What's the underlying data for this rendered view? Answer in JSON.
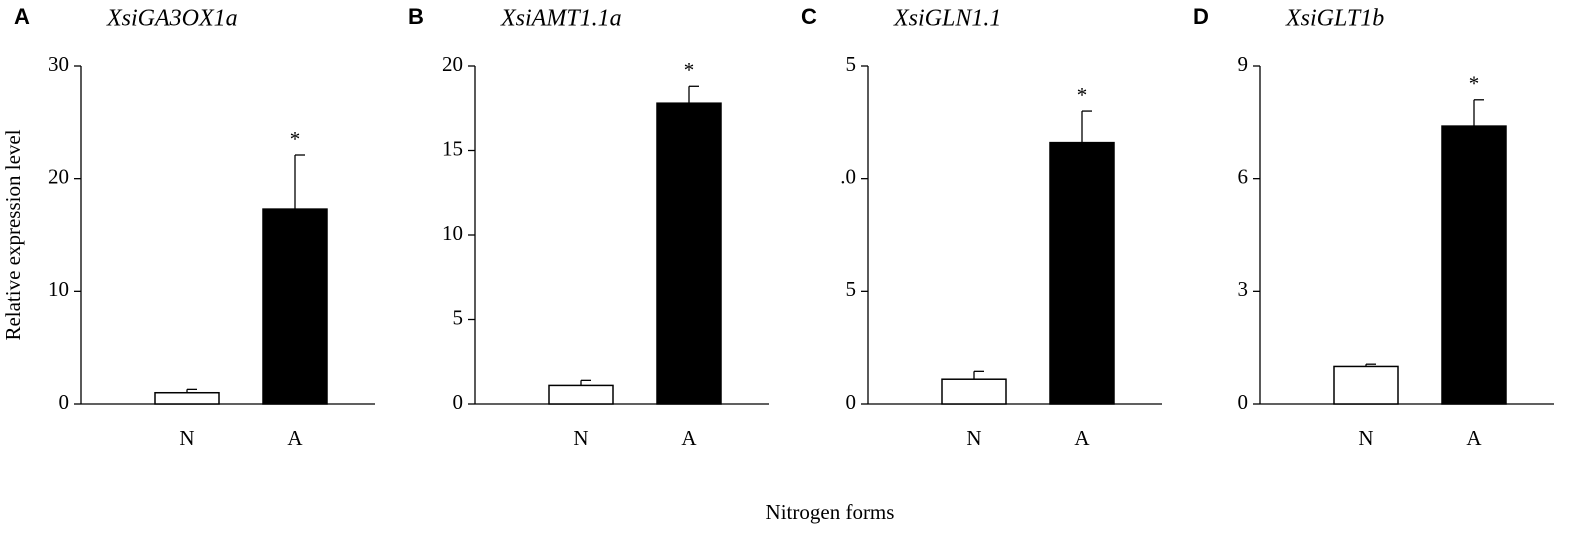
{
  "chart_data": [
    {
      "type": "bar",
      "panel": "A",
      "title": "XsiGA3OX1a",
      "ylabel": "Relative expression level",
      "categories": [
        "N",
        "A"
      ],
      "values": [
        1.0,
        17.3
      ],
      "errors": [
        0.3,
        4.8
      ],
      "colors": [
        "#ffffff",
        "#000000"
      ],
      "significance": [
        null,
        "*"
      ],
      "ylim": [
        0,
        30
      ],
      "yticks": [
        0,
        10,
        20,
        30
      ]
    },
    {
      "type": "bar",
      "panel": "B",
      "title": "XsiAMT1.1a",
      "categories": [
        "N",
        "A"
      ],
      "values": [
        1.1,
        17.8
      ],
      "errors": [
        0.3,
        1.0
      ],
      "colors": [
        "#ffffff",
        "#000000"
      ],
      "significance": [
        null,
        "*"
      ],
      "ylim": [
        0,
        20
      ],
      "yticks": [
        0,
        5,
        10,
        15,
        20
      ]
    },
    {
      "type": "bar",
      "panel": "C",
      "title": "XsiGLN1.1",
      "categories": [
        "N",
        "A"
      ],
      "values": [
        1.1,
        11.6
      ],
      "errors": [
        0.35,
        1.4
      ],
      "colors": [
        "#ffffff",
        "#000000"
      ],
      "significance": [
        null,
        "*"
      ],
      "ylim": [
        0,
        15
      ],
      "yticks": [
        0,
        5,
        {
          "value": 10,
          "label": ".0"
        },
        {
          "value": 15,
          "label": "5"
        }
      ]
    },
    {
      "type": "bar",
      "panel": "D",
      "title": "XsiGLT1b",
      "categories": [
        "N",
        "A"
      ],
      "values": [
        1.0,
        7.4
      ],
      "errors": [
        0.06,
        0.7
      ],
      "colors": [
        "#ffffff",
        "#000000"
      ],
      "significance": [
        null,
        "*"
      ],
      "ylim": [
        0,
        9
      ],
      "yticks": [
        0,
        3,
        6,
        9
      ]
    }
  ],
  "xlabel": "Nitrogen forms"
}
